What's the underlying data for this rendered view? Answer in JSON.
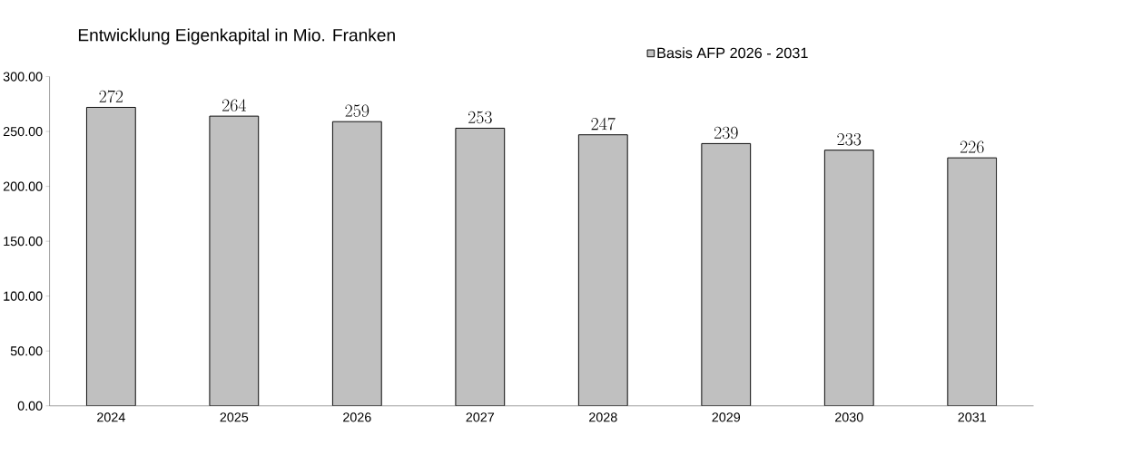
{
  "chart_data": {
    "type": "bar",
    "title": "Entwicklung Eigenkapital in Mio. Franken",
    "categories": [
      "2024",
      "2025",
      "2026",
      "2027",
      "2028",
      "2029",
      "2030",
      "2031"
    ],
    "series": [
      {
        "name": "Basis AFP 2026 - 2031",
        "color": "#c0c0c0",
        "values": [
          272,
          264,
          259,
          253,
          247,
          239,
          233,
          226
        ]
      }
    ],
    "ylim": [
      0,
      300
    ],
    "yticks": [
      {
        "value": 0,
        "label": "0.00"
      },
      {
        "value": 50,
        "label": "50.00"
      },
      {
        "value": 100,
        "label": "100.00"
      },
      {
        "value": 150,
        "label": "150.00"
      },
      {
        "value": 200,
        "label": "200.00"
      },
      {
        "value": 250,
        "label": "250.00"
      },
      {
        "value": 300,
        "label": "300.00"
      }
    ],
    "data_labels": true,
    "legend": "top",
    "grid": false
  }
}
